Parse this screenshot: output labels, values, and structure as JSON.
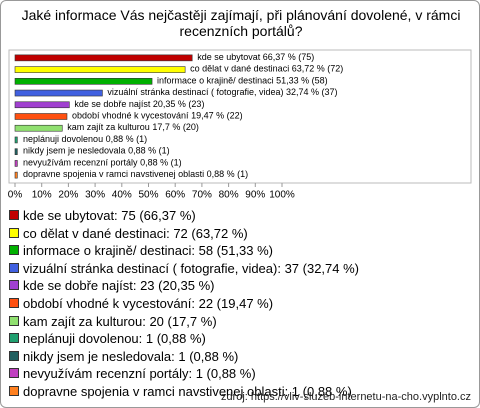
{
  "chart_data": {
    "type": "bar",
    "orientation": "horizontal",
    "title": "Jaké informace Vás nejčastěji zajímají, při plánování dovolené, v rámci recenzních portálů?",
    "categories": [
      "kde se ubytovat",
      "co dělat v dané destinaci",
      "informace o krajině/ destinaci",
      "vizuální stránka destinací ( fotografie, videa)",
      "kde se dobře najíst",
      "období vhodné k vycestování",
      "kam zajít za kulturou",
      "neplánuji dovolenou",
      "nikdy jsem je nesledovala",
      "nevyužívám recenzní portály",
      "dopravne spojenia v ramci navstivenej oblasti"
    ],
    "values": [
      66.37,
      63.72,
      51.33,
      32.74,
      20.35,
      19.47,
      17.7,
      0.88,
      0.88,
      0.88,
      0.88
    ],
    "value_labels": [
      "66,37 % (75)",
      "63,72 % (72)",
      "51,33 % (58)",
      "32,74 % (37)",
      "20,35 % (23)",
      "19,47 % (22)",
      "17,7 % (20)",
      "0,88 % (1)",
      "0,88 % (1)",
      "0,88 % (1)",
      "0,88 % (1)"
    ],
    "colors": [
      "#c00000",
      "#ffff00",
      "#00b000",
      "#4060e0",
      "#a040d0",
      "#ff5010",
      "#90e070",
      "#20a070",
      "#206060",
      "#c040c0",
      "#ff8020"
    ],
    "legend": [
      "kde se ubytovat: 75 (66,37 %)",
      "co dělat v dané destinaci: 72 (63,72 %)",
      "informace o krajině/ destinaci: 58 (51,33 %)",
      "vizuální stránka destinací ( fotografie, videa): 37 (32,74 %)",
      "kde se dobře najíst: 23 (20,35 %)",
      "období vhodné k vycestování: 22 (19,47 %)",
      "kam zajít za kulturou: 20 (17,7 %)",
      "neplánuji dovolenou: 1 (0,88 %)",
      "nikdy jsem je nesledovala: 1 (0,88 %)",
      "nevyužívám recenzní portály: 1 (0,88 %)",
      "dopravne spojenia v ramci navstivenej oblasti: 1 (0,88 %)"
    ],
    "xlim": [
      0,
      100
    ],
    "xticks": [
      {
        "value": 0,
        "label": "0%"
      },
      {
        "value": 10,
        "label": "10%"
      },
      {
        "value": 20,
        "label": "20%"
      },
      {
        "value": 30,
        "label": "30%"
      },
      {
        "value": 40,
        "label": "40%"
      },
      {
        "value": 50,
        "label": "50%"
      },
      {
        "value": 60,
        "label": "60%"
      },
      {
        "value": 70,
        "label": "70%"
      },
      {
        "value": 80,
        "label": "80%"
      },
      {
        "value": 90,
        "label": "90%"
      },
      {
        "value": 100,
        "label": "100%"
      }
    ],
    "source": "zdroj: https://vliv-sluzeb-internetu-na-cho.vyplnto.cz"
  }
}
